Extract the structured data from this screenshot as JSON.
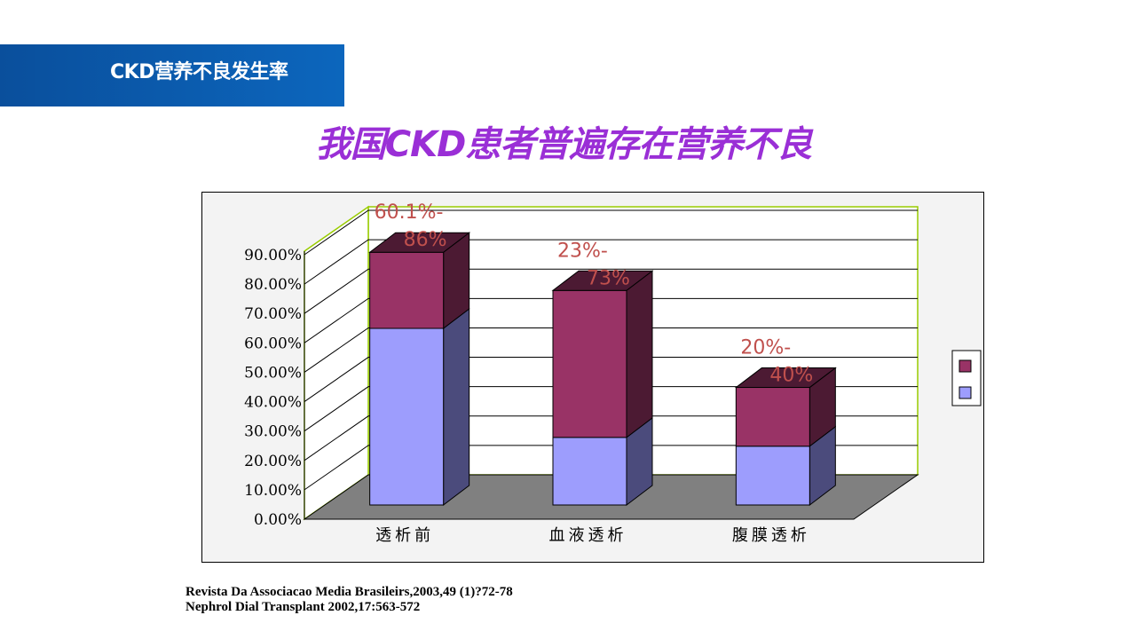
{
  "header": {
    "label": "CKD营养不良发生率"
  },
  "slide_title": "我国CKD患者普遍存在营养不良",
  "chart_data": {
    "type": "bar",
    "stacked": true,
    "three_d": true,
    "categories": [
      "透析前",
      "血液透析",
      "腹膜透析"
    ],
    "series": [
      {
        "values": [
          60.1,
          23.0,
          20.0
        ],
        "color": "#9d9dfd",
        "side_color": "#4b4b7c"
      },
      {
        "values": [
          25.9,
          50.0,
          20.0
        ],
        "color": "#993366",
        "side_color": "#4c1a33"
      }
    ],
    "ylim": [
      0,
      90
    ],
    "yticks": [
      "0.00%",
      "10.00%",
      "20.00%",
      "30.00%",
      "40.00%",
      "50.00%",
      "60.00%",
      "70.00%",
      "80.00%",
      "90.00%"
    ],
    "annotations": [
      {
        "line1": "60.1%-",
        "line2": "86%"
      },
      {
        "line1": "23%-",
        "line2": "73%"
      },
      {
        "line1": "20%-",
        "line2": "40%"
      }
    ],
    "annotation_color": "#c0504d",
    "grid": true,
    "legend": "right",
    "wall_border_color": "#99cc00",
    "floor_color": "#808080"
  },
  "references": [
    "Revista Da Associacao Media Brasileirs,2003,49 (1)?72-78",
    "Nephrol Dial Transplant 2002,17:563-572"
  ]
}
